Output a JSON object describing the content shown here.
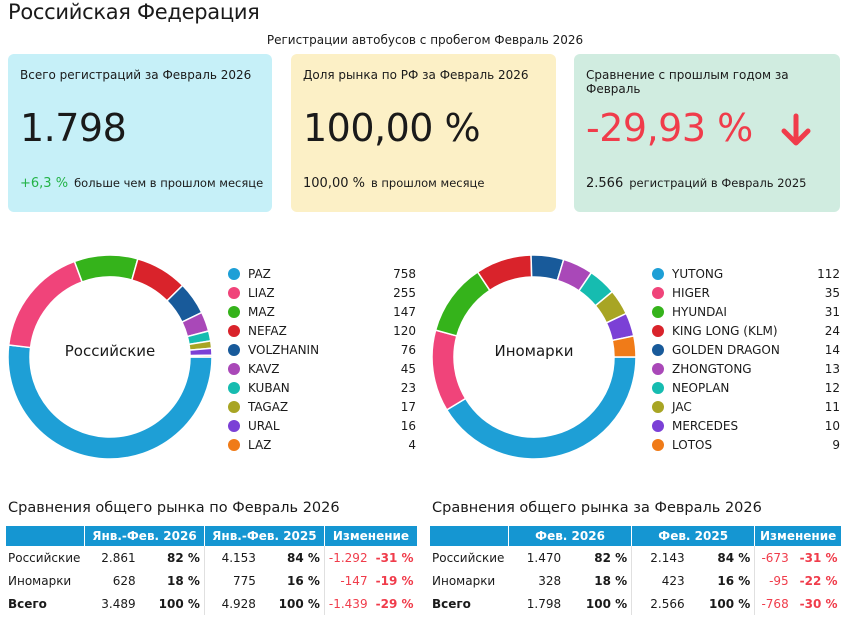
{
  "header": {
    "title": "Российская Федерация",
    "subtitle": "Регистрации автобусов с пробегом Февраль 2026"
  },
  "cards": [
    {
      "label": "Всего регистраций за Февраль 2026",
      "value": "1.798",
      "foot_value": "+6,3 %",
      "foot_text": "больше чем в прошлом месяце"
    },
    {
      "label": "Доля рынка по РФ за Февраль 2026",
      "value": "100,00 %",
      "foot_value": "100,00 %",
      "foot_text": "в прошлом месяце"
    },
    {
      "label": "Сравнение с прошлым годом за Февраль",
      "value": "-29,93 %",
      "foot_value": "2.566",
      "foot_text": "регистраций в Февраль 2025",
      "arrow_icon": "arrow-down-icon"
    }
  ],
  "colors": {
    "accent_cyan": "#1596d2",
    "negative": "#f03c4b",
    "positive": "#23b347",
    "palette": [
      "#1e9fd6",
      "#f0447a",
      "#35b31b",
      "#d9232b",
      "#185a9a",
      "#a948b8",
      "#16bcb0",
      "#a8a524",
      "#7b40d6",
      "#f07b18"
    ]
  },
  "chart_data": [
    {
      "type": "pie",
      "title": "Российские",
      "categories": [
        "PAZ",
        "LIAZ",
        "MAZ",
        "NEFAZ",
        "VOLZHANIN",
        "KAVZ",
        "KUBAN",
        "TAGAZ",
        "URAL",
        "LAZ"
      ],
      "values": [
        758,
        255,
        147,
        120,
        76,
        45,
        23,
        17,
        16,
        4
      ]
    },
    {
      "type": "pie",
      "title": "Иномарки",
      "categories": [
        "YUTONG",
        "HIGER",
        "HYUNDAI",
        "KING LONG (KLM)",
        "GOLDEN DRAGON",
        "ZHONGTONG",
        "NEOPLAN",
        "JAC",
        "MERCEDES",
        "LOTOS"
      ],
      "values": [
        112,
        35,
        31,
        24,
        14,
        13,
        12,
        11,
        10,
        9
      ]
    }
  ],
  "tables": [
    {
      "title": "Сравнения общего рынка по Февраль 2026",
      "headers": [
        "",
        "Янв.-Фев. 2026",
        "Янв.-Фев. 2025",
        "Изменение"
      ],
      "rows": [
        {
          "label": "Российские",
          "v1": "2.861",
          "p1": "82 %",
          "v2": "4.153",
          "p2": "84 %",
          "d": "-1.292",
          "dp": "-31 %"
        },
        {
          "label": "Иномарки",
          "v1": "628",
          "p1": "18 %",
          "v2": "775",
          "p2": "16 %",
          "d": "-147",
          "dp": "-19 %"
        },
        {
          "label": "Всего",
          "v1": "3.489",
          "p1": "100 %",
          "v2": "4.928",
          "p2": "100 %",
          "d": "-1.439",
          "dp": "-29 %"
        }
      ]
    },
    {
      "title": "Сравнения общего рынка за Февраль 2026",
      "headers": [
        "",
        "Фев. 2026",
        "Фев. 2025",
        "Изменение"
      ],
      "rows": [
        {
          "label": "Российские",
          "v1": "1.470",
          "p1": "82 %",
          "v2": "2.143",
          "p2": "84 %",
          "d": "-673",
          "dp": "-31 %"
        },
        {
          "label": "Иномарки",
          "v1": "328",
          "p1": "18 %",
          "v2": "423",
          "p2": "16 %",
          "d": "-95",
          "dp": "-22 %"
        },
        {
          "label": "Всего",
          "v1": "1.798",
          "p1": "100 %",
          "v2": "2.566",
          "p2": "100 %",
          "d": "-768",
          "dp": "-30 %"
        }
      ]
    }
  ]
}
